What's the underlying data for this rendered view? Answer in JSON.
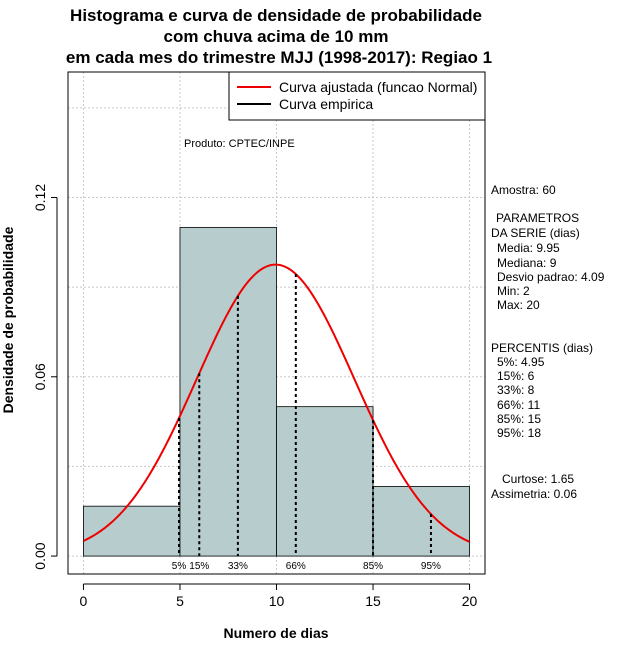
{
  "chart_data": {
    "type": "bar",
    "title_lines": [
      "Histograma e curva de densidade de probabilidade",
      "com chuva acima de 10 mm",
      "em cada mes do trimestre MJJ (1998-2017): Regiao 1"
    ],
    "xlabel": "Numero de dias",
    "ylabel": "Densidade de probabilidade",
    "xlim": [
      -0.8,
      20.8
    ],
    "ylim": [
      -0.006,
      0.162
    ],
    "x_ticks": [
      0,
      5,
      10,
      15,
      20
    ],
    "y_ticks": [
      0.0,
      0.06,
      0.12
    ],
    "y_tick_labels": [
      "0.00",
      "0.06",
      "0.12"
    ],
    "grid": true,
    "histogram": {
      "breaks": [
        0,
        5,
        10,
        15,
        20
      ],
      "density": [
        0.0167,
        0.11,
        0.05,
        0.0233
      ],
      "fill": "#b7cccc"
    },
    "normal_fit": {
      "mean": 9.95,
      "sd": 4.09,
      "color": "#ee0000"
    },
    "percentile_markers": [
      {
        "label": "5%",
        "x": 4.95
      },
      {
        "label": "15%",
        "x": 6
      },
      {
        "label": "33%",
        "x": 8
      },
      {
        "label": "66%",
        "x": 11
      },
      {
        "label": "85%",
        "x": 15
      },
      {
        "label": "95%",
        "x": 18
      }
    ],
    "legend": {
      "position": "top-right",
      "entries": [
        {
          "label": "Curva ajustada (funcao Normal)",
          "color": "#ee0000"
        },
        {
          "label": "Curva empirica",
          "color": "#000000"
        }
      ]
    },
    "annotation": "Produto: CPTEC/INPE"
  },
  "side_info": {
    "sample": "Amostra: 60",
    "params_header_1": "PARAMETROS",
    "params_header_2": "DA SERIE (dias)",
    "media": "Media: 9.95",
    "mediana": "Mediana: 9",
    "desvio": "Desvio padrao: 4.09",
    "min": "Min: 2",
    "max": "Max: 20",
    "percentis_header": "PERCENTIS (dias)",
    "p5": "5%: 4.95",
    "p15": "15%: 6",
    "p33": "33%: 8",
    "p66": "66%: 11",
    "p85": "85%: 15",
    "p95": "95%: 18",
    "curtose": "Curtose: 1.65",
    "assimetria": "Assimetria: 0.06"
  }
}
